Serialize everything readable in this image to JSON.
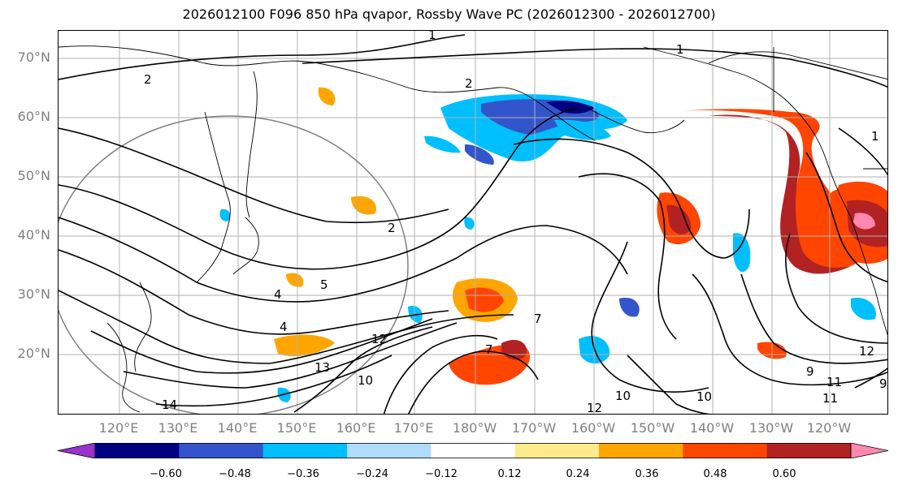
{
  "title": "2026012100 F096 850 hPa qvapor, Rossby Wave PC (2026012300 - 2026012700)",
  "map": {
    "lat_labels": [
      "70°N",
      "60°N",
      "50°N",
      "40°N",
      "30°N",
      "20°N"
    ],
    "lon_labels": [
      "120°E",
      "130°E",
      "140°E",
      "150°E",
      "160°E",
      "170°E",
      "180°W",
      "170°W",
      "160°W",
      "150°W",
      "140°W",
      "130°W",
      "120°W"
    ],
    "contour_labels": [
      "1",
      "1",
      "1",
      "2",
      "2",
      "2",
      "4",
      "4",
      "5",
      "7",
      "10",
      "12",
      "13",
      "14",
      "9",
      "11",
      "10",
      "12",
      "7",
      "9",
      "11",
      "10",
      "12"
    ],
    "colors": {
      "grid": "#b0b0b0",
      "coast": "#000000",
      "contour": "#000000",
      "circle": "#808080"
    }
  },
  "colorbar": {
    "ticks": [
      "−0.60",
      "−0.48",
      "−0.36",
      "−0.24",
      "−0.12",
      "0.12",
      "0.24",
      "0.36",
      "0.48",
      "0.60"
    ],
    "segment_colors": [
      "#9933cc",
      "#000080",
      "#3355cc",
      "#00bfff",
      "#aedcfa",
      "#ffffff",
      "#ffeb8a",
      "#ffa500",
      "#ff4500",
      "#b22222",
      "#ff88b0"
    ]
  }
}
